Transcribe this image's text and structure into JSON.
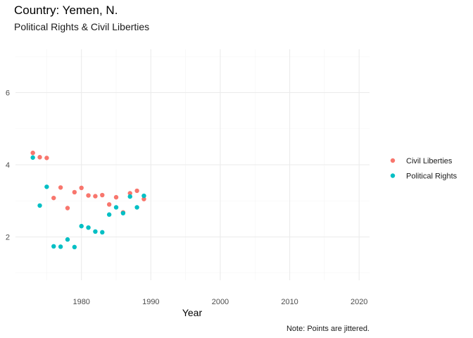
{
  "chart_data": {
    "type": "scatter",
    "title": "Country: Yemen, N.",
    "subtitle": "Political Rights & Civil Liberties",
    "xlabel": "Year",
    "ylabel": "",
    "caption": "Note: Points are jittered.",
    "xlim": [
      1970.5,
      2021.5
    ],
    "ylim": [
      0.8,
      7.2
    ],
    "x_ticks": [
      1980,
      1990,
      2000,
      2010,
      2020
    ],
    "y_ticks": [
      2,
      4,
      6
    ],
    "grid": true,
    "legend_position": "right",
    "series": [
      {
        "name": "Civil Liberties",
        "color": "#F8766D",
        "points": [
          [
            1973,
            4.33
          ],
          [
            1974,
            4.21
          ],
          [
            1975,
            4.19
          ],
          [
            1976,
            3.08
          ],
          [
            1977,
            3.37
          ],
          [
            1978,
            2.8
          ],
          [
            1979,
            3.24
          ],
          [
            1980,
            3.36
          ],
          [
            1981,
            3.15
          ],
          [
            1982,
            3.13
          ],
          [
            1983,
            3.16
          ],
          [
            1984,
            2.9
          ],
          [
            1985,
            3.1
          ],
          [
            1986,
            2.68
          ],
          [
            1987,
            3.21
          ],
          [
            1988,
            3.28
          ],
          [
            1989,
            3.05
          ]
        ]
      },
      {
        "name": "Political Rights",
        "color": "#00BFC4",
        "points": [
          [
            1973,
            4.2
          ],
          [
            1974,
            2.87
          ],
          [
            1975,
            3.39
          ],
          [
            1976,
            1.74
          ],
          [
            1977,
            1.73
          ],
          [
            1978,
            1.93
          ],
          [
            1979,
            1.72
          ],
          [
            1980,
            2.3
          ],
          [
            1981,
            2.26
          ],
          [
            1982,
            2.15
          ],
          [
            1983,
            2.13
          ],
          [
            1984,
            2.62
          ],
          [
            1985,
            2.82
          ],
          [
            1986,
            2.66
          ],
          [
            1987,
            3.12
          ],
          [
            1988,
            2.82
          ],
          [
            1989,
            3.14
          ]
        ]
      }
    ]
  }
}
